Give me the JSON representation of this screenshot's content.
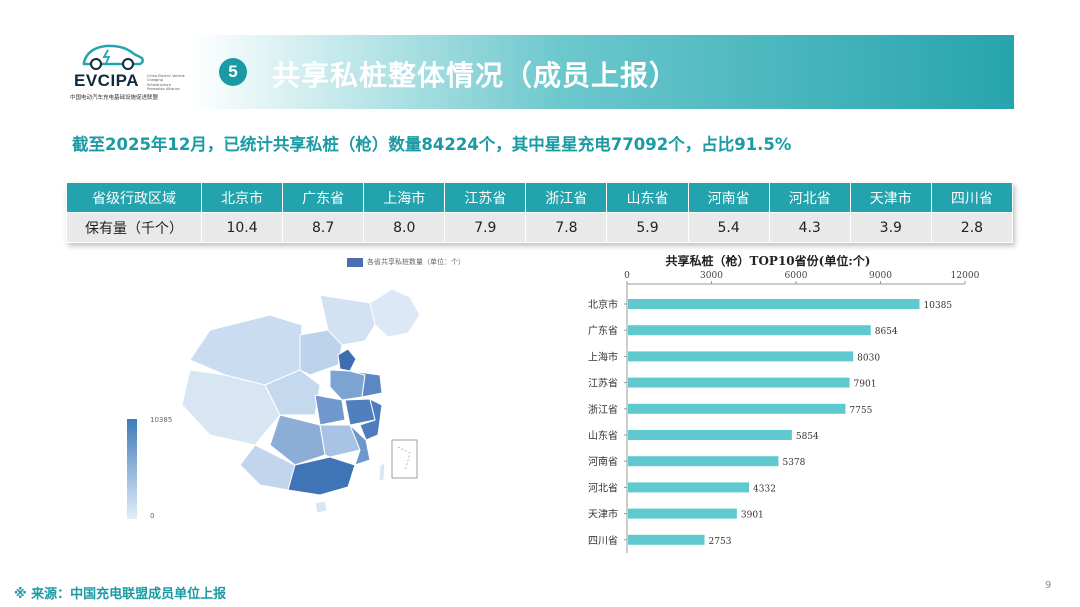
{
  "logo": {
    "brand": "EVCIPA",
    "tagline": "China Electric Vehicle Charging Infrastructure Promotion Alliance",
    "org": "中国电动汽车充电基础设施促进联盟"
  },
  "header": {
    "number": "5",
    "title": "共享私桩整体情况（成员上报）"
  },
  "summary": "截至2025年12月，已统计共享私桩（枪）数量84224个，其中星星充电77092个，占比91.5%",
  "table": {
    "header_label": "省级行政区域",
    "row_label": "保有量（千个）",
    "provinces": [
      "北京市",
      "广东省",
      "上海市",
      "江苏省",
      "浙江省",
      "山东省",
      "河南省",
      "河北省",
      "天津市",
      "四川省"
    ],
    "values": [
      "10.4",
      "8.7",
      "8.0",
      "7.9",
      "7.8",
      "5.9",
      "5.4",
      "4.3",
      "3.9",
      "2.8"
    ]
  },
  "map": {
    "legend": "各省共享私桩数量（单位：个）",
    "scale_max": "10385",
    "scale_min": "0",
    "colors": {
      "high": "#3d7bb8",
      "low": "#e4eef8"
    }
  },
  "chart_data": {
    "type": "bar",
    "orientation": "horizontal",
    "title": "共享私桩（枪）TOP10省份(单位:个)",
    "categories": [
      "北京市",
      "广东省",
      "上海市",
      "江苏省",
      "浙江省",
      "山东省",
      "河南省",
      "河北省",
      "天津市",
      "四川省"
    ],
    "values": [
      10385,
      8654,
      8030,
      7901,
      7755,
      5854,
      5378,
      4332,
      3901,
      2753
    ],
    "xlim": [
      0,
      12000
    ],
    "xticks": [
      0,
      3000,
      6000,
      9000,
      12000
    ],
    "axis_position": "top",
    "grid": false,
    "bar_color": "#5ecad0"
  },
  "footer": {
    "source": "※ 来源：中国充电联盟成员单位上报",
    "page": "9"
  },
  "colors": {
    "accent": "#1a9aa3",
    "table_header": "#23a3ad"
  }
}
